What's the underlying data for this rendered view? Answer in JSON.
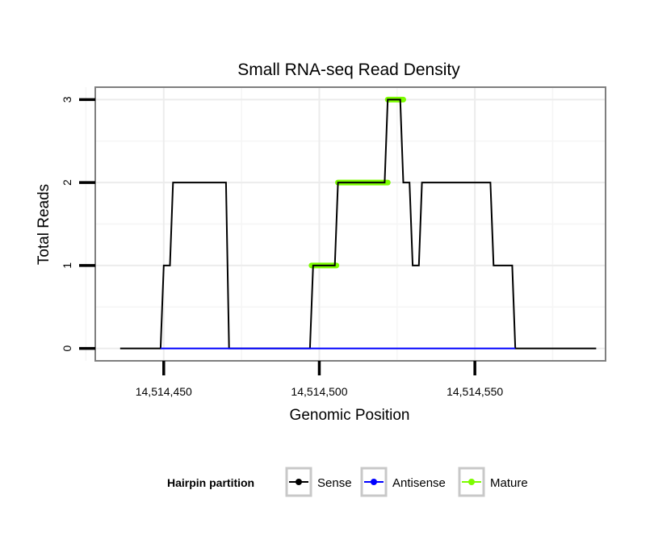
{
  "chart_data": {
    "type": "line",
    "title": "Small RNA-seq Read Density",
    "xlabel": "Genomic Position",
    "ylabel": "Total Reads",
    "xlim": [
      14514428,
      14514592
    ],
    "ylim": [
      -0.15,
      3.15
    ],
    "x_ticks": [
      {
        "value": 14514450,
        "label": "14,514,450"
      },
      {
        "value": 14514500,
        "label": "14,514,500"
      },
      {
        "value": 14514550,
        "label": "14,514,550"
      }
    ],
    "y_ticks": [
      {
        "value": 0,
        "label": "0"
      },
      {
        "value": 1,
        "label": "1"
      },
      {
        "value": 2,
        "label": "2"
      },
      {
        "value": 3,
        "label": "3"
      }
    ],
    "grid": true,
    "legend": {
      "title": "Hairpin partition",
      "position": "bottom",
      "entries": [
        {
          "name": "Sense",
          "color": "#000000"
        },
        {
          "name": "Antisense",
          "color": "#0000ff"
        },
        {
          "name": "Mature",
          "color": "#7cfc00"
        }
      ]
    },
    "series": [
      {
        "name": "Sense",
        "color": "#000000",
        "style": "line",
        "points": [
          [
            14514436,
            0
          ],
          [
            14514449,
            0
          ],
          [
            14514450,
            1
          ],
          [
            14514452,
            1
          ],
          [
            14514453,
            2
          ],
          [
            14514470,
            2
          ],
          [
            14514471,
            0
          ],
          [
            14514497,
            0
          ],
          [
            14514498,
            1
          ],
          [
            14514505,
            1
          ],
          [
            14514506,
            2
          ],
          [
            14514521,
            2
          ],
          [
            14514522,
            3
          ],
          [
            14514526,
            3
          ],
          [
            14514527,
            2
          ],
          [
            14514529,
            2
          ],
          [
            14514530,
            1
          ],
          [
            14514532,
            1
          ],
          [
            14514533,
            2
          ],
          [
            14514555,
            2
          ],
          [
            14514556,
            1
          ],
          [
            14514562,
            1
          ],
          [
            14514563,
            0
          ],
          [
            14514589,
            0
          ]
        ]
      },
      {
        "name": "Antisense",
        "color": "#0000ff",
        "style": "line",
        "points": [
          [
            14514449,
            0
          ],
          [
            14514563,
            0
          ]
        ]
      },
      {
        "name": "Mature",
        "color": "#7cfc00",
        "style": "segments",
        "segments": [
          [
            [
              14514497.5,
              1
            ],
            [
              14514505.5,
              1
            ]
          ],
          [
            [
              14514506,
              2
            ],
            [
              14514522,
              2
            ]
          ],
          [
            [
              14514522,
              3
            ],
            [
              14514527,
              3
            ]
          ]
        ]
      }
    ]
  }
}
